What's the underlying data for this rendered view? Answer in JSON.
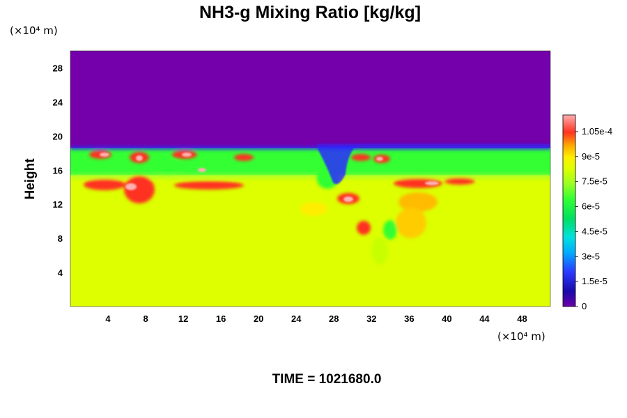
{
  "chart_data": {
    "type": "heatmap",
    "title": "NH3-g Mixing Ratio [kg/kg]",
    "ylabel": "Height",
    "y_unit": "(×10⁴ m)",
    "x_unit": "(×10⁴ m)",
    "x_ticks": [
      4,
      8,
      12,
      16,
      20,
      24,
      28,
      32,
      36,
      40,
      44,
      48
    ],
    "y_ticks": [
      4,
      8,
      12,
      16,
      20,
      24,
      28
    ],
    "xlim": [
      0,
      51
    ],
    "ylim": [
      0,
      30
    ],
    "colorbar": {
      "label_values": [
        0,
        1.5e-05,
        3e-05,
        4.5e-05,
        6e-05,
        7.5e-05,
        9e-05,
        0.000105
      ],
      "labels": [
        "0",
        "1.5e-5",
        "3e-5",
        "4.5e-5",
        "6e-5",
        "7.5e-5",
        "9e-5",
        "1.05e-4"
      ],
      "range": [
        0,
        0.000115
      ]
    },
    "field_regions": [
      {
        "name": "upper-layer",
        "y_range": [
          18.6,
          30
        ],
        "value": 0
      },
      {
        "name": "transition-band",
        "y_range": [
          15.4,
          18.6
        ],
        "value": 5.5e-05
      },
      {
        "name": "lower-layer",
        "y_range": [
          0,
          15.4
        ],
        "value": 7.7e-05
      }
    ],
    "colors": {
      "upper": "#7300aa",
      "band": "#33ff33",
      "lower": "#ddff00",
      "high": "#ff3322",
      "peak": "#ffb0b0",
      "low": "#2a2aff"
    }
  },
  "footer": {
    "time_label": "TIME = 1021680.0"
  }
}
